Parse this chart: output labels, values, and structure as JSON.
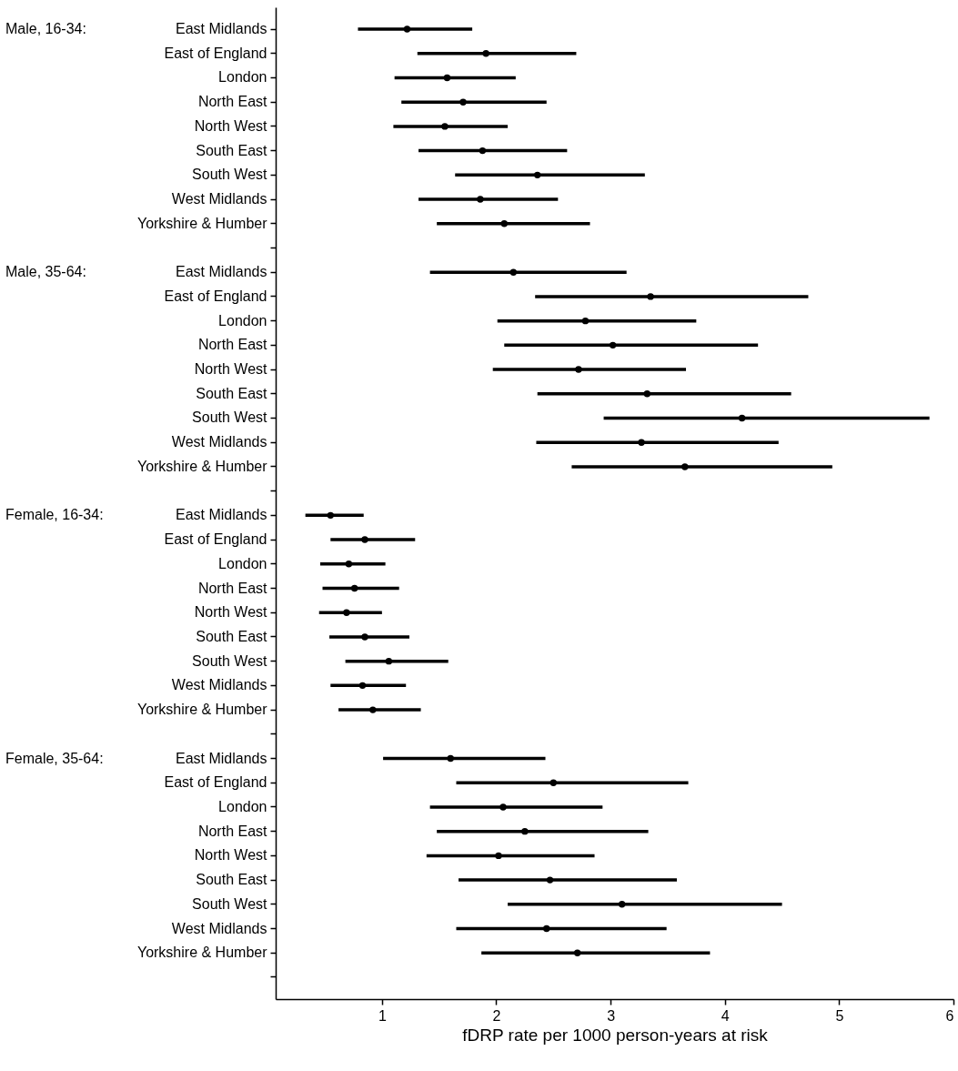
{
  "chart_data": {
    "type": "scatter",
    "orientation": "horizontal",
    "xlabel": "fDRP rate per 1000 person-years at risk",
    "marker": "circle",
    "color": "#000000",
    "annotations": [
      "Male, 16-34:",
      "Male, 35-64:",
      "Female, 16-34:",
      "Female, 35-64:"
    ],
    "categories": [
      "East Midlands",
      "East of England",
      "London",
      "North East",
      "North West",
      "South East",
      "South West",
      "West Midlands",
      "Yorkshire & Humber",
      null,
      "East Midlands",
      "East of England",
      "London",
      "North East",
      "North West",
      "South East",
      "South West",
      "West Midlands",
      "Yorkshire & Humber",
      null,
      "East Midlands",
      "East of England",
      "London",
      "North East",
      "North West",
      "South East",
      "South West",
      "West Midlands",
      "Yorkshire & Humber",
      null,
      "East Midlands",
      "East of England",
      "London",
      "North East",
      "North West",
      "South East",
      "South West",
      "West Midlands",
      "Yorkshire & Humber",
      null
    ],
    "values": [
      1.22,
      1.91,
      1.57,
      1.71,
      1.55,
      1.88,
      2.36,
      1.86,
      2.07,
      null,
      2.15,
      3.35,
      2.78,
      3.02,
      2.72,
      3.32,
      4.15,
      3.27,
      3.65,
      null,
      0.55,
      0.85,
      0.71,
      0.76,
      0.69,
      0.85,
      1.06,
      0.83,
      0.92,
      null,
      1.6,
      2.5,
      2.06,
      2.25,
      2.02,
      2.47,
      3.1,
      2.44,
      2.71,
      null
    ],
    "errors": [
      [
        0.79,
        1.79
      ],
      [
        1.31,
        2.7
      ],
      [
        1.11,
        2.17
      ],
      [
        1.17,
        2.44
      ],
      [
        1.1,
        2.1
      ],
      [
        1.32,
        2.62
      ],
      [
        1.64,
        3.3
      ],
      [
        1.32,
        2.54
      ],
      [
        1.48,
        2.82
      ],
      null,
      [
        1.42,
        3.14
      ],
      [
        2.34,
        4.73
      ],
      [
        2.01,
        3.75
      ],
      [
        2.07,
        4.29
      ],
      [
        1.97,
        3.66
      ],
      [
        2.36,
        4.58
      ],
      [
        2.94,
        5.79
      ],
      [
        2.35,
        4.47
      ],
      [
        2.66,
        4.94
      ],
      null,
      [
        0.33,
        0.84
      ],
      [
        0.55,
        1.29
      ],
      [
        0.46,
        1.03
      ],
      [
        0.48,
        1.15
      ],
      [
        0.45,
        1.0
      ],
      [
        0.54,
        1.24
      ],
      [
        0.68,
        1.58
      ],
      [
        0.55,
        1.21
      ],
      [
        0.62,
        1.34
      ],
      null,
      [
        1.01,
        2.43
      ],
      [
        1.65,
        3.68
      ],
      [
        1.42,
        2.93
      ],
      [
        1.48,
        3.33
      ],
      [
        1.39,
        2.86
      ],
      [
        1.67,
        3.58
      ],
      [
        2.1,
        4.5
      ],
      [
        1.65,
        3.49
      ],
      [
        1.87,
        3.87
      ],
      null
    ],
    "xlim": [
      0.07,
      6
    ],
    "xticks": [
      1,
      2,
      3,
      4,
      5,
      6
    ]
  }
}
